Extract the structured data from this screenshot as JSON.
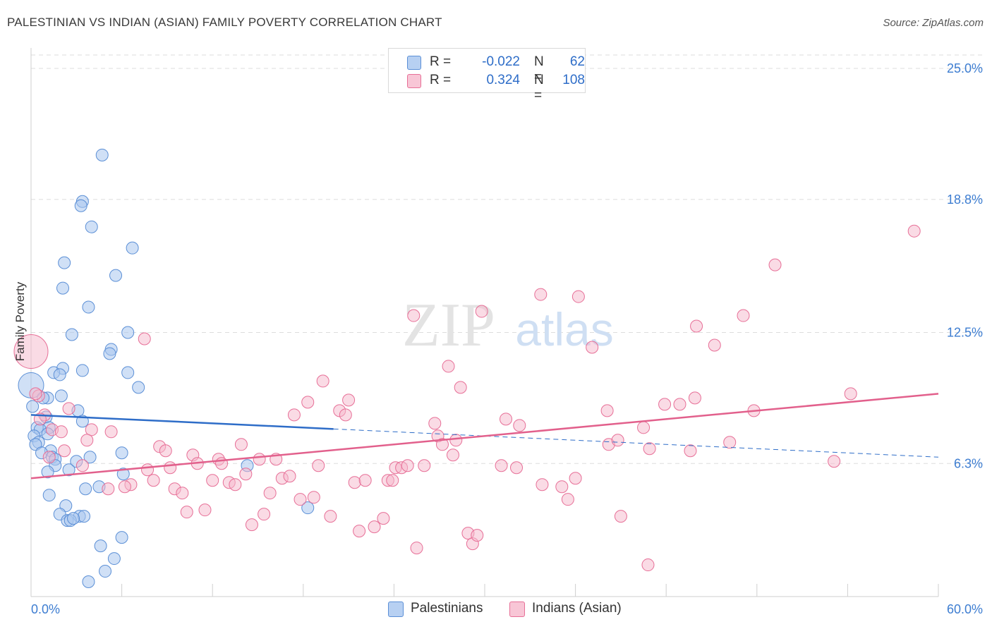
{
  "title": "PALESTINIAN VS INDIAN (ASIAN) FAMILY POVERTY CORRELATION CHART",
  "source": "Source: ZipAtlas.com",
  "watermark": {
    "zip": "ZIP",
    "atlas": "atlas"
  },
  "colors": {
    "palestinians": "#5b8fd6",
    "palestinians_fill": "#a9c6ee",
    "indians": "#e76f97",
    "indians_fill": "#f5b8cb",
    "axis_label": "#3d7dd1",
    "grid": "#dddddd"
  },
  "legend_top": [
    {
      "r_label": "R =",
      "r_value": "-0.022",
      "n_label": "N =",
      "n_value": "62"
    },
    {
      "r_label": "R =",
      "r_value": "0.324",
      "n_label": "N =",
      "n_value": "108"
    }
  ],
  "legend_bottom": [
    "Palestinians",
    "Indians (Asian)"
  ],
  "chart_data": {
    "type": "scatter",
    "title": "PALESTINIAN VS INDIAN (ASIAN) FAMILY POVERTY CORRELATION CHART",
    "xlabel": "",
    "ylabel": "Family Poverty",
    "xlim": [
      0,
      60
    ],
    "ylim": [
      0,
      25.0
    ],
    "x_tick_labels": [
      "0.0%",
      "60.0%"
    ],
    "y_tick_labels": [
      "6.3%",
      "12.5%",
      "18.8%",
      "25.0%"
    ],
    "y_ticks": [
      6.3,
      12.5,
      18.8,
      25.0
    ],
    "grid": true,
    "legend_placement": "top-center",
    "series": [
      {
        "name": "Palestinians",
        "r": -0.022,
        "n": 62,
        "trend": {
          "x": [
            0,
            60
          ],
          "y": [
            8.6,
            6.6
          ],
          "solid_until_x": 20
        },
        "points": [
          [
            4.7,
            20.9
          ],
          [
            3.4,
            18.7
          ],
          [
            3.3,
            18.5
          ],
          [
            4.0,
            17.5
          ],
          [
            6.7,
            16.5
          ],
          [
            2.2,
            15.8
          ],
          [
            5.6,
            15.2
          ],
          [
            2.1,
            14.6
          ],
          [
            3.8,
            13.7
          ],
          [
            6.4,
            12.5
          ],
          [
            2.7,
            12.4
          ],
          [
            5.3,
            11.7
          ],
          [
            5.2,
            11.5
          ],
          [
            2.1,
            10.8
          ],
          [
            3.4,
            10.7
          ],
          [
            6.4,
            10.6
          ],
          [
            1.5,
            10.6
          ],
          [
            1.9,
            10.5
          ],
          [
            7.1,
            9.9
          ],
          [
            0.0,
            10.0
          ],
          [
            2.0,
            9.5
          ],
          [
            1.1,
            9.4
          ],
          [
            0.8,
            9.4
          ],
          [
            0.1,
            9.0
          ],
          [
            3.1,
            8.8
          ],
          [
            1.0,
            8.5
          ],
          [
            3.4,
            8.3
          ],
          [
            1.2,
            8.0
          ],
          [
            0.4,
            8.0
          ],
          [
            0.6,
            7.9
          ],
          [
            0.2,
            7.6
          ],
          [
            1.1,
            7.7
          ],
          [
            0.5,
            7.3
          ],
          [
            0.3,
            7.2
          ],
          [
            1.3,
            6.9
          ],
          [
            0.7,
            6.8
          ],
          [
            6.0,
            6.8
          ],
          [
            3.9,
            6.6
          ],
          [
            1.4,
            6.6
          ],
          [
            1.6,
            6.5
          ],
          [
            3.0,
            6.4
          ],
          [
            1.6,
            6.2
          ],
          [
            2.5,
            6.0
          ],
          [
            1.1,
            5.9
          ],
          [
            6.1,
            5.8
          ],
          [
            14.3,
            6.2
          ],
          [
            3.6,
            5.1
          ],
          [
            4.5,
            5.2
          ],
          [
            1.2,
            4.8
          ],
          [
            2.3,
            4.3
          ],
          [
            1.9,
            3.9
          ],
          [
            18.3,
            4.2
          ],
          [
            3.2,
            3.8
          ],
          [
            3.5,
            3.8
          ],
          [
            2.4,
            3.6
          ],
          [
            2.6,
            3.6
          ],
          [
            6.0,
            2.8
          ],
          [
            4.6,
            2.4
          ],
          [
            5.5,
            1.8
          ],
          [
            4.9,
            1.2
          ],
          [
            3.8,
            0.7
          ],
          [
            2.8,
            3.7
          ]
        ]
      },
      {
        "name": "Indians (Asian)",
        "r": 0.324,
        "n": 108,
        "trend": {
          "x": [
            0,
            60
          ],
          "y": [
            5.6,
            9.6
          ]
        },
        "points": [
          [
            0.0,
            11.6
          ],
          [
            7.5,
            12.2
          ],
          [
            0.5,
            9.5
          ],
          [
            0.9,
            8.6
          ],
          [
            2.5,
            8.9
          ],
          [
            1.4,
            7.9
          ],
          [
            2.0,
            7.8
          ],
          [
            4.0,
            7.9
          ],
          [
            5.3,
            7.8
          ],
          [
            3.7,
            7.4
          ],
          [
            2.2,
            6.9
          ],
          [
            3.4,
            6.2
          ],
          [
            1.2,
            6.6
          ],
          [
            5.1,
            5.1
          ],
          [
            6.6,
            5.3
          ],
          [
            6.2,
            5.2
          ],
          [
            7.7,
            6.0
          ],
          [
            8.1,
            5.5
          ],
          [
            8.5,
            7.1
          ],
          [
            8.9,
            6.9
          ],
          [
            9.2,
            6.1
          ],
          [
            9.5,
            5.1
          ],
          [
            10.0,
            4.9
          ],
          [
            10.3,
            4.0
          ],
          [
            10.7,
            6.7
          ],
          [
            11.0,
            6.3
          ],
          [
            11.5,
            4.1
          ],
          [
            12.0,
            5.5
          ],
          [
            12.4,
            6.5
          ],
          [
            12.6,
            6.3
          ],
          [
            13.1,
            5.4
          ],
          [
            13.5,
            5.3
          ],
          [
            13.9,
            7.2
          ],
          [
            14.2,
            5.8
          ],
          [
            14.6,
            3.4
          ],
          [
            15.1,
            6.5
          ],
          [
            15.4,
            3.9
          ],
          [
            15.8,
            4.9
          ],
          [
            16.2,
            6.5
          ],
          [
            16.6,
            5.6
          ],
          [
            17.1,
            5.7
          ],
          [
            17.4,
            8.6
          ],
          [
            17.8,
            4.6
          ],
          [
            18.3,
            9.2
          ],
          [
            18.7,
            4.7
          ],
          [
            19.0,
            6.2
          ],
          [
            19.3,
            10.2
          ],
          [
            19.8,
            3.8
          ],
          [
            20.4,
            8.8
          ],
          [
            20.8,
            8.6
          ],
          [
            21.0,
            9.3
          ],
          [
            21.4,
            5.4
          ],
          [
            21.7,
            3.1
          ],
          [
            22.1,
            5.5
          ],
          [
            22.7,
            3.3
          ],
          [
            23.3,
            3.7
          ],
          [
            23.6,
            5.5
          ],
          [
            23.9,
            5.5
          ],
          [
            24.1,
            6.1
          ],
          [
            24.5,
            6.1
          ],
          [
            24.9,
            6.2
          ],
          [
            25.3,
            13.3
          ],
          [
            25.5,
            2.3
          ],
          [
            26.0,
            6.2
          ],
          [
            26.7,
            8.2
          ],
          [
            26.9,
            7.6
          ],
          [
            27.2,
            7.2
          ],
          [
            27.6,
            10.9
          ],
          [
            27.9,
            6.7
          ],
          [
            28.1,
            7.4
          ],
          [
            28.4,
            9.9
          ],
          [
            28.9,
            3.0
          ],
          [
            29.2,
            2.5
          ],
          [
            29.5,
            2.9
          ],
          [
            29.8,
            13.5
          ],
          [
            31.1,
            6.2
          ],
          [
            31.4,
            8.4
          ],
          [
            32.1,
            6.1
          ],
          [
            32.3,
            8.1
          ],
          [
            33.7,
            14.3
          ],
          [
            33.8,
            5.3
          ],
          [
            35.1,
            5.2
          ],
          [
            35.5,
            4.6
          ],
          [
            36.0,
            5.6
          ],
          [
            36.2,
            14.2
          ],
          [
            37.1,
            11.8
          ],
          [
            38.1,
            8.8
          ],
          [
            38.2,
            7.2
          ],
          [
            38.8,
            7.4
          ],
          [
            39.0,
            3.8
          ],
          [
            40.5,
            8.0
          ],
          [
            40.8,
            1.5
          ],
          [
            40.9,
            7.0
          ],
          [
            41.9,
            9.1
          ],
          [
            42.9,
            9.1
          ],
          [
            43.6,
            6.9
          ],
          [
            43.9,
            9.4
          ],
          [
            44.0,
            12.8
          ],
          [
            45.2,
            11.9
          ],
          [
            46.2,
            7.3
          ],
          [
            47.1,
            13.3
          ],
          [
            47.8,
            8.8
          ],
          [
            49.2,
            15.7
          ],
          [
            53.1,
            6.4
          ],
          [
            54.2,
            9.6
          ],
          [
            58.4,
            17.3
          ],
          [
            0.3,
            9.6
          ],
          [
            0.6,
            8.4
          ]
        ]
      }
    ]
  }
}
